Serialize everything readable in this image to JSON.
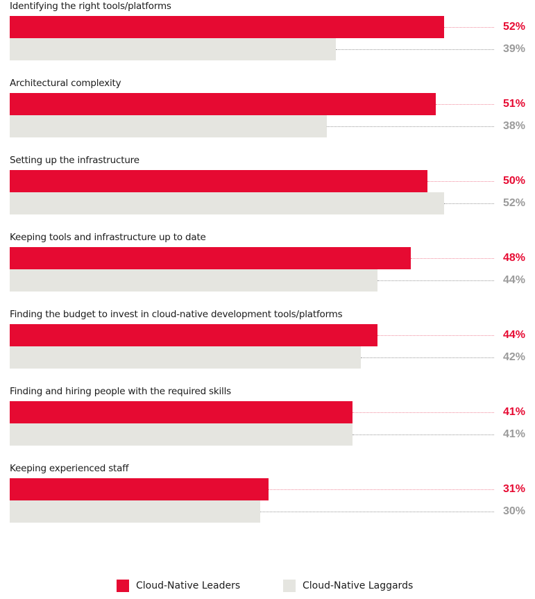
{
  "chart_data": {
    "type": "bar",
    "orientation": "horizontal",
    "categories": [
      "Identifying the right tools/platforms",
      "Architectural complexity",
      "Setting up the infrastructure",
      "Keeping tools and infrastructure up to date",
      "Finding the budget to invest in cloud-native development tools/platforms",
      "Finding and hiring people with the required skills",
      "Keeping experienced staff"
    ],
    "series": [
      {
        "name": "Cloud-Native Leaders",
        "color": "#e60a32",
        "value_color": "#e60a32",
        "values": [
          52,
          51,
          50,
          48,
          44,
          41,
          31
        ]
      },
      {
        "name": "Cloud-Native Laggards",
        "color": "#e5e5e0",
        "value_color": "#9a9a9a",
        "values": [
          39,
          38,
          52,
          44,
          42,
          41,
          30
        ]
      }
    ],
    "value_suffix": "%",
    "xlim": [
      0,
      52
    ],
    "legend_position": "bottom",
    "grid": false
  },
  "legend": {
    "leaders": "Cloud-Native Leaders",
    "laggards": "Cloud-Native Laggards"
  }
}
